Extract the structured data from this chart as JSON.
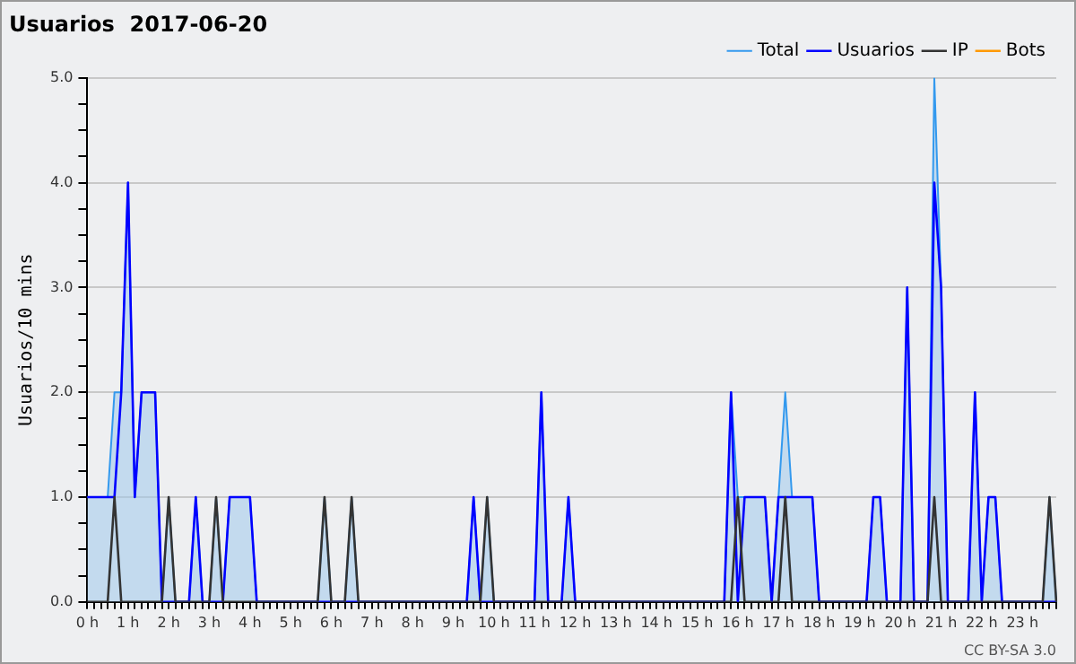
{
  "chart_data": {
    "type": "line",
    "title": "Usuarios  2017-06-20",
    "ylabel": "Usuarios/10 mins",
    "categories": [
      "0 h",
      null,
      null,
      null,
      null,
      null,
      "1 h",
      null,
      null,
      null,
      null,
      null,
      "2 h",
      null,
      null,
      null,
      null,
      null,
      "3 h",
      null,
      null,
      null,
      null,
      null,
      "4 h",
      null,
      null,
      null,
      null,
      null,
      "5 h",
      null,
      null,
      null,
      null,
      null,
      "6 h",
      null,
      null,
      null,
      null,
      null,
      "7 h",
      null,
      null,
      null,
      null,
      null,
      "8 h",
      null,
      null,
      null,
      null,
      null,
      "9 h",
      null,
      null,
      null,
      null,
      null,
      "10 h",
      null,
      null,
      null,
      null,
      null,
      "11 h",
      null,
      null,
      null,
      null,
      null,
      "12 h",
      null,
      null,
      null,
      null,
      null,
      "13 h",
      null,
      null,
      null,
      null,
      null,
      "14 h",
      null,
      null,
      null,
      null,
      null,
      "15 h",
      null,
      null,
      null,
      null,
      null,
      "16 h",
      null,
      null,
      null,
      null,
      null,
      "17 h",
      null,
      null,
      null,
      null,
      null,
      "18 h",
      null,
      null,
      null,
      null,
      null,
      "19 h",
      null,
      null,
      null,
      null,
      null,
      "20 h",
      null,
      null,
      null,
      null,
      null,
      "21 h",
      null,
      null,
      null,
      null,
      null,
      "22 h",
      null,
      null,
      null,
      null,
      null,
      "23 h",
      null,
      null,
      null,
      null,
      null
    ],
    "series": [
      {
        "name": "Total",
        "type": "area",
        "color": "#3399ee",
        "values": [
          1,
          1,
          1,
          1,
          2,
          2,
          4,
          1,
          2,
          2,
          2,
          0,
          1,
          0,
          0,
          0,
          1,
          0,
          0,
          1,
          0,
          1,
          1,
          1,
          1,
          0,
          0,
          0,
          0,
          0,
          0,
          0,
          0,
          0,
          0,
          1,
          0,
          0,
          0,
          1,
          0,
          0,
          0,
          0,
          0,
          0,
          0,
          0,
          0,
          0,
          0,
          0,
          0,
          0,
          0,
          0,
          0,
          1,
          0,
          1,
          0,
          0,
          0,
          0,
          0,
          0,
          0,
          2,
          0,
          0,
          0,
          1,
          0,
          0,
          0,
          0,
          0,
          0,
          0,
          0,
          0,
          0,
          0,
          0,
          0,
          0,
          0,
          0,
          0,
          0,
          0,
          0,
          0,
          0,
          0,
          2,
          1,
          1,
          1,
          1,
          1,
          0,
          1,
          2,
          1,
          1,
          1,
          1,
          0,
          0,
          0,
          0,
          0,
          0,
          0,
          0,
          1,
          1,
          0,
          0,
          0,
          3,
          0,
          0,
          0,
          5,
          3,
          0,
          0,
          0,
          0,
          2,
          0,
          1,
          1,
          0,
          0,
          0,
          0,
          0,
          0,
          0,
          1,
          0
        ]
      },
      {
        "name": "Usuarios",
        "type": "line",
        "color": "#0000ff",
        "values": [
          1,
          1,
          1,
          1,
          1,
          2,
          4,
          1,
          2,
          2,
          2,
          0,
          0,
          0,
          0,
          0,
          1,
          0,
          0,
          0,
          0,
          1,
          1,
          1,
          1,
          0,
          0,
          0,
          0,
          0,
          0,
          0,
          0,
          0,
          0,
          0,
          0,
          0,
          0,
          0,
          0,
          0,
          0,
          0,
          0,
          0,
          0,
          0,
          0,
          0,
          0,
          0,
          0,
          0,
          0,
          0,
          0,
          1,
          0,
          0,
          0,
          0,
          0,
          0,
          0,
          0,
          0,
          2,
          0,
          0,
          0,
          1,
          0,
          0,
          0,
          0,
          0,
          0,
          0,
          0,
          0,
          0,
          0,
          0,
          0,
          0,
          0,
          0,
          0,
          0,
          0,
          0,
          0,
          0,
          0,
          2,
          0,
          1,
          1,
          1,
          1,
          0,
          1,
          1,
          1,
          1,
          1,
          1,
          0,
          0,
          0,
          0,
          0,
          0,
          0,
          0,
          1,
          1,
          0,
          0,
          0,
          3,
          0,
          0,
          0,
          4,
          3,
          0,
          0,
          0,
          0,
          2,
          0,
          1,
          1,
          0,
          0,
          0,
          0,
          0,
          0,
          0,
          0,
          0
        ]
      },
      {
        "name": "IP",
        "type": "line",
        "color": "#333333",
        "values": [
          0,
          0,
          0,
          0,
          1,
          0,
          0,
          0,
          0,
          0,
          0,
          0,
          1,
          0,
          0,
          0,
          0,
          0,
          0,
          1,
          0,
          0,
          0,
          0,
          0,
          0,
          0,
          0,
          0,
          0,
          0,
          0,
          0,
          0,
          0,
          1,
          0,
          0,
          0,
          1,
          0,
          0,
          0,
          0,
          0,
          0,
          0,
          0,
          0,
          0,
          0,
          0,
          0,
          0,
          0,
          0,
          0,
          0,
          0,
          1,
          0,
          0,
          0,
          0,
          0,
          0,
          0,
          0,
          0,
          0,
          0,
          0,
          0,
          0,
          0,
          0,
          0,
          0,
          0,
          0,
          0,
          0,
          0,
          0,
          0,
          0,
          0,
          0,
          0,
          0,
          0,
          0,
          0,
          0,
          0,
          0,
          1,
          0,
          0,
          0,
          0,
          0,
          0,
          1,
          0,
          0,
          0,
          0,
          0,
          0,
          0,
          0,
          0,
          0,
          0,
          0,
          0,
          0,
          0,
          0,
          0,
          0,
          0,
          0,
          0,
          1,
          0,
          0,
          0,
          0,
          0,
          0,
          0,
          0,
          0,
          0,
          0,
          0,
          0,
          0,
          0,
          0,
          1,
          0
        ]
      },
      {
        "name": "Bots",
        "type": "line",
        "color": "#ff9900",
        "values": [
          null,
          null,
          null,
          null,
          null,
          null,
          null,
          null,
          null,
          null,
          null,
          null,
          null,
          null,
          null,
          null,
          null,
          null,
          null,
          null,
          null,
          null,
          null,
          null,
          null,
          null,
          null,
          null,
          null,
          null,
          null,
          null,
          null,
          null,
          null,
          null,
          null,
          null,
          null,
          null,
          null,
          null,
          null,
          null,
          null,
          null,
          null,
          null,
          null,
          null,
          null,
          null,
          null,
          null,
          null,
          null,
          null,
          null,
          null,
          null,
          null,
          null,
          null,
          null,
          null,
          null,
          null,
          null,
          null,
          null,
          null,
          null,
          null,
          null,
          null,
          null,
          null,
          null,
          null,
          null,
          null,
          null,
          null,
          null,
          null,
          null,
          null,
          null,
          null,
          null,
          null,
          null,
          null,
          null,
          null,
          null,
          null,
          null,
          null,
          null,
          null,
          null,
          null,
          null,
          null,
          null,
          null,
          null,
          null,
          null,
          null,
          null,
          null,
          null,
          null,
          null,
          null,
          null,
          null,
          null,
          null,
          null,
          null,
          null,
          null,
          null,
          null,
          null,
          null,
          null,
          null,
          null,
          null,
          null,
          null,
          null,
          null,
          null,
          null,
          null,
          null,
          null,
          null,
          null
        ]
      }
    ],
    "ylim": [
      0,
      5
    ],
    "yticks": [
      {
        "value": 0,
        "label": "0.0"
      },
      {
        "value": 0.25,
        "label": null
      },
      {
        "value": 0.5,
        "label": null
      },
      {
        "value": 0.75,
        "label": null
      },
      {
        "value": 1,
        "label": "1.0"
      },
      {
        "value": 1.25,
        "label": null
      },
      {
        "value": 1.5,
        "label": null
      },
      {
        "value": 1.75,
        "label": null
      },
      {
        "value": 2,
        "label": "2.0"
      },
      {
        "value": 2.25,
        "label": null
      },
      {
        "value": 2.5,
        "label": null
      },
      {
        "value": 2.75,
        "label": null
      },
      {
        "value": 3,
        "label": "3.0"
      },
      {
        "value": 3.25,
        "label": null
      },
      {
        "value": 3.5,
        "label": null
      },
      {
        "value": 3.75,
        "label": null
      },
      {
        "value": 4,
        "label": "4.0"
      },
      {
        "value": 4.25,
        "label": null
      },
      {
        "value": 4.5,
        "label": null
      },
      {
        "value": 4.75,
        "label": null
      },
      {
        "value": 5,
        "label": "5.0"
      }
    ],
    "grid": "y",
    "legend": "top right",
    "marker": "none",
    "annotations": [
      "CC BY-SA 3.0"
    ]
  }
}
